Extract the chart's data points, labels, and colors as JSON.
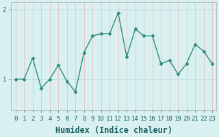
{
  "x": [
    0,
    1,
    2,
    3,
    4,
    5,
    6,
    7,
    8,
    9,
    10,
    11,
    12,
    13,
    14,
    15,
    16,
    17,
    18,
    19,
    20,
    21,
    22,
    23
  ],
  "y": [
    1.0,
    1.0,
    1.3,
    0.87,
    1.0,
    1.2,
    0.97,
    0.82,
    1.38,
    1.62,
    1.65,
    1.65,
    1.95,
    1.32,
    1.72,
    1.62,
    1.62,
    1.22,
    1.27,
    1.07,
    1.22,
    1.5,
    1.4,
    1.22
  ],
  "line_color": "#2d8b7a",
  "marker": "D",
  "marker_size": 2.5,
  "bg_color": "#d8f0f0",
  "grid_color_v": "#c8e4e4",
  "grid_color_h": "#b8d8d8",
  "xlabel": "Humidex (Indice chaleur)",
  "xlim": [
    -0.5,
    23.5
  ],
  "ylim": [
    0.55,
    2.1
  ],
  "yticks": [
    1,
    2
  ],
  "xticks": [
    0,
    1,
    2,
    3,
    4,
    5,
    6,
    7,
    8,
    9,
    10,
    11,
    12,
    13,
    14,
    15,
    16,
    17,
    18,
    19,
    20,
    21,
    22,
    23
  ],
  "tick_fontsize": 6.5,
  "xlabel_fontsize": 8.5,
  "linewidth": 1.0
}
